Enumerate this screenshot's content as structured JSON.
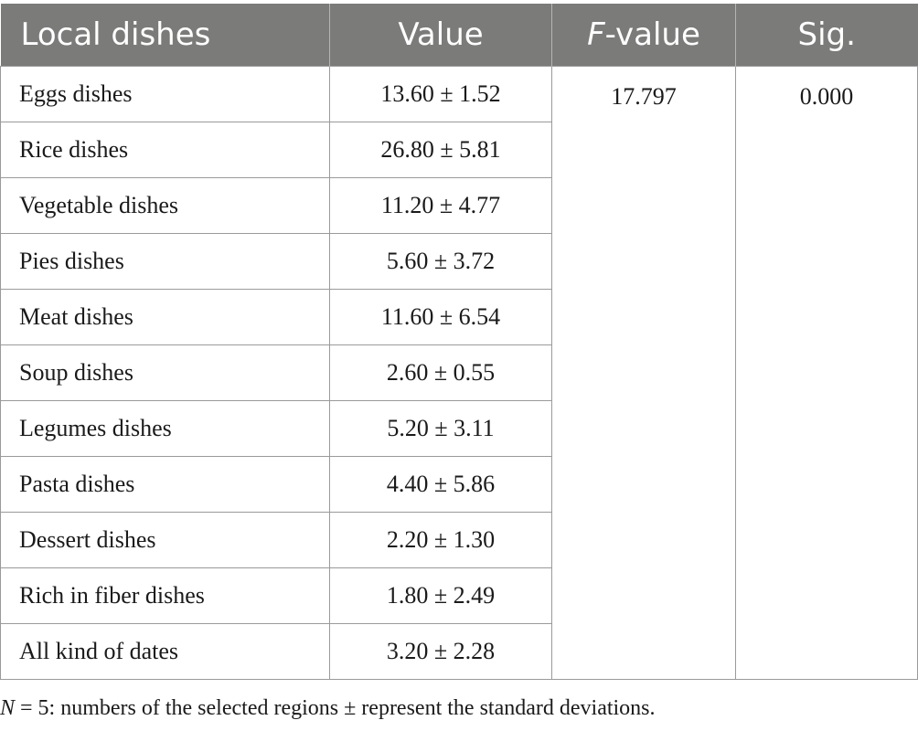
{
  "table": {
    "headers": {
      "dish": "Local dishes",
      "value": "Value",
      "f_italic": "F",
      "f_rest": "-value",
      "sig": "Sig."
    },
    "rows": [
      {
        "dish": "Eggs dishes",
        "value": "13.60 ± 1.52"
      },
      {
        "dish": "Rice dishes",
        "value": "26.80 ± 5.81"
      },
      {
        "dish": "Vegetable dishes",
        "value": "11.20 ± 4.77"
      },
      {
        "dish": "Pies dishes",
        "value": "5.60 ± 3.72"
      },
      {
        "dish": "Meat dishes",
        "value": "11.60 ± 6.54"
      },
      {
        "dish": "Soup dishes",
        "value": "2.60 ± 0.55"
      },
      {
        "dish": "Legumes dishes",
        "value": "5.20 ± 3.11"
      },
      {
        "dish": "Pasta dishes",
        "value": "4.40 ± 5.86"
      },
      {
        "dish": "Dessert dishes",
        "value": "2.20 ± 1.30"
      },
      {
        "dish": "Rich in fiber dishes",
        "value": "1.80 ± 2.49"
      },
      {
        "dish": "All kind of dates",
        "value": "3.20 ± 2.28"
      }
    ],
    "f_value": "17.797",
    "sig_value": "0.000"
  },
  "footnote": {
    "n_italic": "N",
    "rest": " = 5: numbers of the selected regions ± represent the standard deviations."
  },
  "colors": {
    "header_bg": "#7b7b7a",
    "header_text": "#ffffff",
    "border": "#9a9a9a"
  }
}
